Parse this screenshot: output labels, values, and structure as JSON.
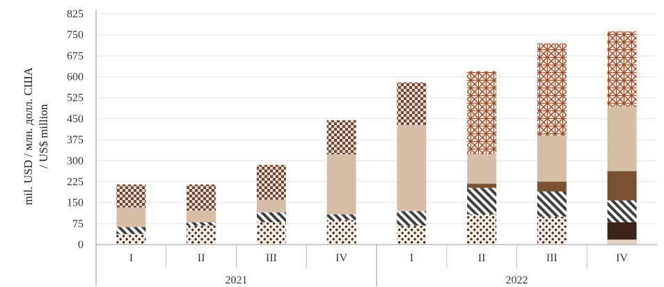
{
  "chart_data": {
    "type": "bar",
    "stacked": true,
    "ylabel_lines": [
      "mil. USD / млн. долл. США",
      "/ US$ million"
    ],
    "ylim": [
      0,
      825
    ],
    "yticks": [
      0,
      75,
      150,
      225,
      300,
      375,
      450,
      525,
      600,
      675,
      750,
      825
    ],
    "grid": true,
    "legend": "none",
    "categories": [
      "I",
      "II",
      "III",
      "IV",
      "I",
      "II",
      "III",
      "IV"
    ],
    "groups": [
      {
        "label": "2021",
        "count": 4
      },
      {
        "label": "2022",
        "count": 4
      }
    ],
    "series": [
      {
        "values": [
          0,
          0,
          0,
          0,
          0,
          0,
          0,
          18
        ],
        "color": "#e2d1bf",
        "pattern": "none"
      },
      {
        "values": [
          0,
          0,
          0,
          0,
          0,
          0,
          0,
          62
        ],
        "color": "#3b2318",
        "pattern": "none"
      },
      {
        "values": [
          38,
          68,
          80,
          88,
          68,
          108,
          100,
          0
        ],
        "color": "#4a3b30",
        "pattern": "dots"
      },
      {
        "values": [
          25,
          12,
          35,
          20,
          52,
          95,
          90,
          78
        ],
        "color": "#4a4a4a",
        "pattern": "stripes"
      },
      {
        "values": [
          0,
          0,
          0,
          0,
          0,
          15,
          35,
          105
        ],
        "color": "#7a5233",
        "pattern": "none"
      },
      {
        "values": [
          70,
          42,
          45,
          215,
          308,
          105,
          165,
          230
        ],
        "color": "#d6bda7",
        "pattern": "none"
      },
      {
        "values": [
          82,
          93,
          125,
          122,
          152,
          0,
          0,
          0
        ],
        "color": "#6b4a3a",
        "pattern": "checker"
      },
      {
        "values": [
          0,
          0,
          0,
          0,
          0,
          297,
          330,
          270
        ],
        "color": "#a5552f",
        "pattern": "lattice"
      }
    ]
  }
}
